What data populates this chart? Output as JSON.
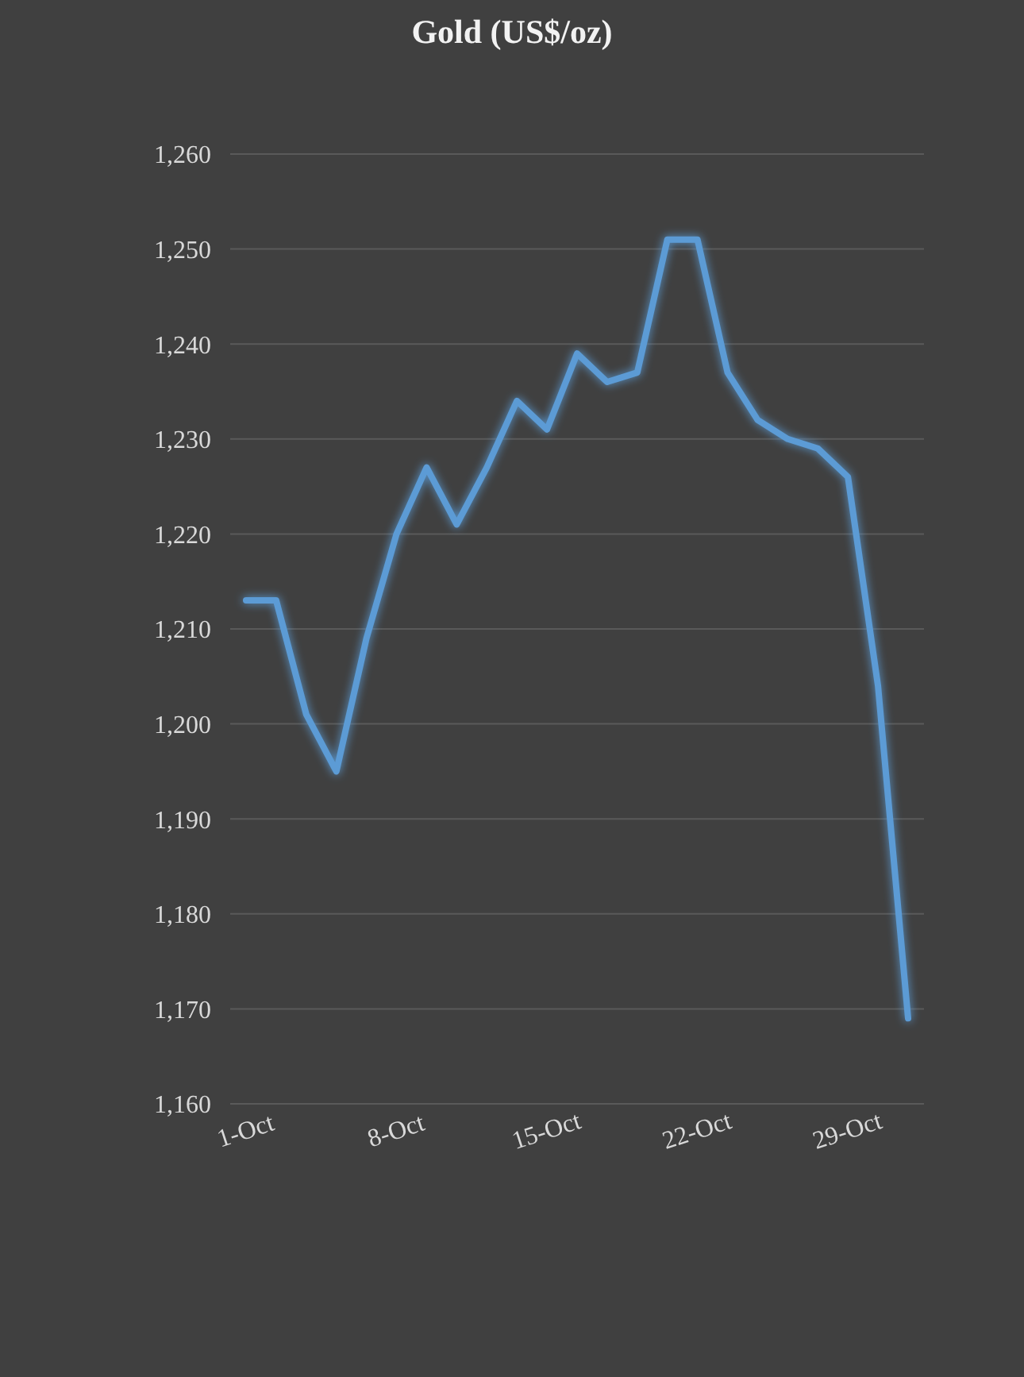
{
  "chart_data": {
    "type": "line",
    "title": "Gold (US$/oz)",
    "categories": [
      "1-Oct",
      null,
      null,
      null,
      null,
      "8-Oct",
      null,
      null,
      null,
      null,
      "15-Oct",
      null,
      null,
      null,
      null,
      "22-Oct",
      null,
      null,
      null,
      null,
      "29-Oct",
      null,
      null
    ],
    "series": [
      {
        "color": "#5b9bd5",
        "values": [
          1213,
          1213,
          1201,
          1195,
          1209,
          1220,
          1227,
          1221,
          1227,
          1234,
          1231,
          1239,
          1236,
          1237,
          1251,
          1251,
          1237,
          1232,
          1230,
          1229,
          1226,
          1204,
          1169
        ]
      }
    ],
    "ylim": [
      1160,
      1260
    ],
    "yticks": [
      {
        "value": 1160,
        "label": "1,160"
      },
      {
        "value": 1170,
        "label": "1,170"
      },
      {
        "value": 1180,
        "label": "1,180"
      },
      {
        "value": 1190,
        "label": "1,190"
      },
      {
        "value": 1200,
        "label": "1,200"
      },
      {
        "value": 1210,
        "label": "1,210"
      },
      {
        "value": 1220,
        "label": "1,220"
      },
      {
        "value": 1230,
        "label": "1,230"
      },
      {
        "value": 1240,
        "label": "1,240"
      },
      {
        "value": 1250,
        "label": "1,250"
      },
      {
        "value": 1260,
        "label": "1,260"
      }
    ],
    "grid": "y",
    "marker": "none",
    "line_style": "solid"
  }
}
